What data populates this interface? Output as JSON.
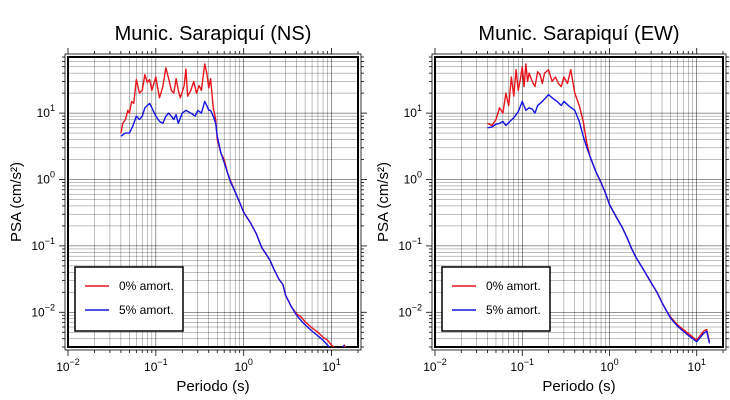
{
  "colors": {
    "undamped": "#e8141c",
    "damped": "#1414e6",
    "axis": "#000000",
    "grid": "#000000"
  },
  "chart_data": [
    {
      "type": "line",
      "title": "Munic. Sarapiquí (NS)",
      "xlabel": "Periodo (s)",
      "ylabel": "PSA (cm/s²)",
      "x_scale": "log",
      "y_scale": "log",
      "xlim": [
        0.01,
        20
      ],
      "ylim": [
        0.003,
        70
      ],
      "x_ticks": [
        {
          "value": 0.01,
          "label": "10",
          "exp": "−2"
        },
        {
          "value": 0.1,
          "label": "10",
          "exp": "−1"
        },
        {
          "value": 1,
          "label": "10",
          "exp": "0"
        },
        {
          "value": 10,
          "label": "10",
          "exp": "1"
        }
      ],
      "y_ticks": [
        {
          "value": 0.01,
          "label": "10",
          "exp": "−2"
        },
        {
          "value": 0.1,
          "label": "10",
          "exp": "−1"
        },
        {
          "value": 1,
          "label": "10",
          "exp": "0"
        },
        {
          "value": 10,
          "label": "10",
          "exp": "1"
        }
      ],
      "grid": true,
      "legend_position": "bottom-left",
      "series": [
        {
          "name": "0% amort.",
          "color": "#e8141c",
          "x": [
            0.04,
            0.042,
            0.045,
            0.048,
            0.05,
            0.053,
            0.056,
            0.06,
            0.065,
            0.07,
            0.075,
            0.08,
            0.085,
            0.09,
            0.095,
            0.1,
            0.105,
            0.11,
            0.12,
            0.13,
            0.14,
            0.15,
            0.16,
            0.17,
            0.18,
            0.19,
            0.2,
            0.21,
            0.22,
            0.23,
            0.25,
            0.27,
            0.29,
            0.31,
            0.33,
            0.36,
            0.38,
            0.4,
            0.42,
            0.45,
            0.48,
            0.5,
            0.55,
            0.6,
            0.65,
            0.7,
            0.8,
            0.9,
            1.0,
            1.2,
            1.4,
            1.6,
            1.8,
            2.0,
            2.2,
            2.5,
            2.8,
            3.0,
            3.5,
            4.0,
            4.5,
            5.0,
            6.0,
            7.0,
            8.0,
            9.0,
            10.0,
            11.0,
            12.0,
            13.0,
            14.0,
            15.0
          ],
          "y": [
            5.0,
            7.0,
            8.0,
            11.0,
            10.0,
            15.0,
            14.0,
            32.0,
            20.0,
            22.0,
            38.0,
            29.0,
            32.0,
            22.0,
            28.0,
            35.0,
            24.0,
            17.0,
            25.0,
            48.0,
            33.0,
            22.0,
            20.0,
            33.0,
            22.0,
            17.0,
            21.0,
            26.0,
            46.0,
            18.0,
            22.0,
            30.0,
            20.0,
            26.0,
            22.0,
            55.0,
            40.0,
            24.0,
            33.0,
            12.0,
            8.0,
            4.0,
            2.5,
            2.0,
            1.3,
            1.0,
            0.65,
            0.45,
            0.32,
            0.22,
            0.15,
            0.095,
            0.075,
            0.06,
            0.045,
            0.032,
            0.026,
            0.018,
            0.012,
            0.0095,
            0.0085,
            0.0072,
            0.0058,
            0.005,
            0.0042,
            0.0038,
            0.0032,
            0.0028,
            0.0024,
            0.0028,
            0.0032,
            0.0026
          ]
        },
        {
          "name": "5% amort.",
          "color": "#1414e6",
          "x": [
            0.04,
            0.045,
            0.05,
            0.055,
            0.06,
            0.065,
            0.07,
            0.075,
            0.08,
            0.085,
            0.09,
            0.1,
            0.11,
            0.12,
            0.13,
            0.14,
            0.15,
            0.16,
            0.17,
            0.18,
            0.2,
            0.22,
            0.25,
            0.28,
            0.3,
            0.33,
            0.36,
            0.38,
            0.4,
            0.42,
            0.45,
            0.48,
            0.5,
            0.55,
            0.6,
            0.65,
            0.7,
            0.8,
            0.9,
            1.0,
            1.2,
            1.4,
            1.6,
            1.8,
            2.0,
            2.2,
            2.5,
            2.8,
            3.0,
            3.5,
            4.0,
            4.5,
            5.0,
            6.0,
            7.0,
            8.0,
            9.0,
            10.0,
            11.0,
            12.0,
            13.0,
            14.0
          ],
          "y": [
            4.5,
            5.0,
            5.0,
            6.5,
            9.0,
            8.0,
            9.0,
            12.0,
            13.0,
            14.0,
            12.0,
            9.0,
            7.5,
            7.0,
            9.0,
            10.0,
            9.0,
            8.0,
            9.5,
            7.0,
            10.0,
            11.0,
            10.0,
            9.0,
            11.0,
            10.0,
            15.0,
            13.0,
            11.0,
            11.0,
            9.0,
            7.0,
            4.5,
            2.5,
            1.8,
            1.3,
            0.95,
            0.65,
            0.45,
            0.32,
            0.22,
            0.15,
            0.095,
            0.075,
            0.06,
            0.045,
            0.032,
            0.026,
            0.018,
            0.012,
            0.009,
            0.0075,
            0.0065,
            0.0052,
            0.0044,
            0.0038,
            0.0032,
            0.0028,
            0.0024,
            0.0022,
            0.0028,
            0.0032
          ]
        }
      ]
    },
    {
      "type": "line",
      "title": "Munic. Sarapiquí (EW)",
      "xlabel": "Periodo (s)",
      "ylabel": "PSA (cm/s²)",
      "x_scale": "log",
      "y_scale": "log",
      "xlim": [
        0.01,
        20
      ],
      "ylim": [
        0.003,
        70
      ],
      "x_ticks": [
        {
          "value": 0.01,
          "label": "10",
          "exp": "−2"
        },
        {
          "value": 0.1,
          "label": "10",
          "exp": "−1"
        },
        {
          "value": 1,
          "label": "10",
          "exp": "0"
        },
        {
          "value": 10,
          "label": "10",
          "exp": "1"
        }
      ],
      "y_ticks": [
        {
          "value": 0.01,
          "label": "10",
          "exp": "−2"
        },
        {
          "value": 0.1,
          "label": "10",
          "exp": "−1"
        },
        {
          "value": 1,
          "label": "10",
          "exp": "0"
        },
        {
          "value": 10,
          "label": "10",
          "exp": "1"
        }
      ],
      "grid": true,
      "legend_position": "bottom-left",
      "series": [
        {
          "name": "0% amort.",
          "color": "#e8141c",
          "x": [
            0.04,
            0.045,
            0.05,
            0.055,
            0.06,
            0.065,
            0.07,
            0.075,
            0.08,
            0.085,
            0.09,
            0.095,
            0.1,
            0.105,
            0.11,
            0.115,
            0.12,
            0.13,
            0.14,
            0.15,
            0.16,
            0.17,
            0.18,
            0.2,
            0.22,
            0.24,
            0.26,
            0.28,
            0.3,
            0.33,
            0.36,
            0.4,
            0.45,
            0.5,
            0.55,
            0.6,
            0.7,
            0.8,
            0.9,
            1.0,
            1.2,
            1.4,
            1.6,
            1.8,
            2.0,
            2.5,
            3.0,
            3.5,
            4.0,
            4.5,
            5.0,
            6.0,
            7.0,
            8.0,
            9.0,
            10.0,
            11.0,
            12.0,
            13.0,
            14.0
          ],
          "y": [
            7.0,
            6.5,
            8.0,
            12.0,
            10.0,
            20.0,
            13.0,
            35.0,
            18.0,
            45.0,
            22.0,
            32.0,
            50.0,
            25.0,
            55.0,
            30.0,
            40.0,
            30.0,
            25.0,
            42.0,
            38.0,
            28.0,
            40.0,
            45.0,
            30.0,
            35.0,
            28.0,
            25.0,
            35.0,
            28.0,
            45.0,
            20.0,
            13.0,
            7.5,
            3.5,
            2.2,
            1.3,
            0.9,
            0.62,
            0.42,
            0.27,
            0.19,
            0.13,
            0.09,
            0.068,
            0.042,
            0.028,
            0.02,
            0.014,
            0.0105,
            0.0085,
            0.0065,
            0.0055,
            0.0048,
            0.0042,
            0.0038,
            0.0045,
            0.0052,
            0.0055,
            0.0036
          ]
        },
        {
          "name": "5% amort.",
          "color": "#1414e6",
          "x": [
            0.04,
            0.045,
            0.05,
            0.055,
            0.06,
            0.065,
            0.07,
            0.08,
            0.09,
            0.1,
            0.11,
            0.12,
            0.13,
            0.14,
            0.15,
            0.17,
            0.2,
            0.22,
            0.25,
            0.28,
            0.3,
            0.35,
            0.4,
            0.45,
            0.5,
            0.55,
            0.6,
            0.7,
            0.8,
            0.9,
            1.0,
            1.2,
            1.4,
            1.6,
            1.8,
            2.0,
            2.5,
            3.0,
            3.5,
            4.0,
            4.5,
            5.0,
            6.0,
            7.0,
            8.0,
            9.0,
            10.0,
            11.0,
            12.0,
            13.0,
            14.0
          ],
          "y": [
            6.0,
            6.2,
            6.8,
            7.0,
            7.5,
            6.5,
            7.2,
            8.5,
            10.5,
            15.0,
            11.0,
            12.0,
            11.5,
            10.0,
            13.0,
            15.0,
            19.0,
            17.0,
            15.0,
            13.0,
            15.0,
            12.5,
            11.0,
            7.5,
            4.5,
            3.0,
            2.2,
            1.3,
            0.9,
            0.62,
            0.42,
            0.27,
            0.19,
            0.13,
            0.09,
            0.068,
            0.042,
            0.028,
            0.02,
            0.014,
            0.0105,
            0.0082,
            0.0062,
            0.0052,
            0.0045,
            0.004,
            0.0036,
            0.0042,
            0.0048,
            0.0052,
            0.0034
          ]
        }
      ]
    }
  ]
}
